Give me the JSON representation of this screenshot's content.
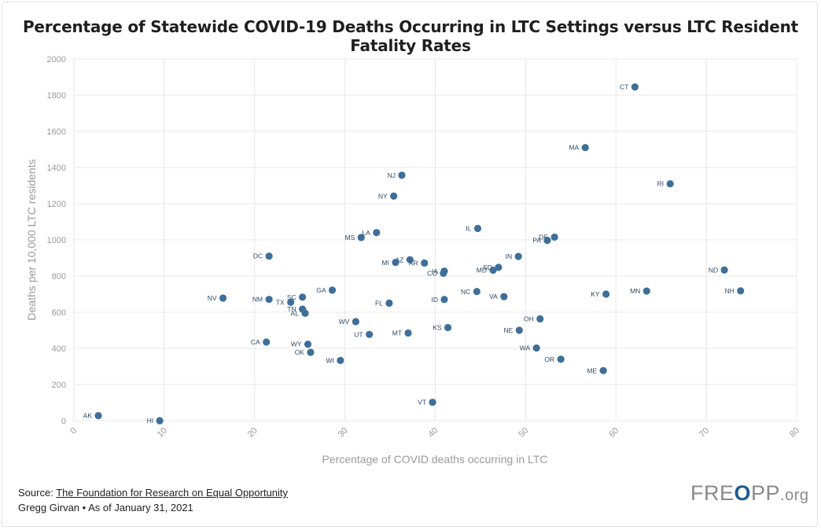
{
  "title": "Percentage of Statewide COVID-19 Deaths Occurring in LTC Settings versus LTC Resident Fatality Rates",
  "source": {
    "prefix": "Source: ",
    "link_text": "The Foundation for Research on Equal Opportunity",
    "byline": "Gregg Girvan • As of January 31, 2021"
  },
  "logo": {
    "part1": "FRE",
    "accent": "O",
    "part2": "PP",
    "suffix": ".org"
  },
  "colors": {
    "point": "#3d6f99",
    "grid": "#e8e8e8",
    "axis_text": "#9a9a9a"
  },
  "chart_data": {
    "type": "scatter",
    "xlabel": "Percentage of COVID deaths occurring in LTC",
    "ylabel": "Deaths per 10,000 LTC residents",
    "xlim": [
      0,
      80
    ],
    "ylim": [
      0,
      2000
    ],
    "xticks": [
      0,
      10,
      20,
      30,
      40,
      50,
      60,
      70,
      80
    ],
    "yticks": [
      0,
      200,
      400,
      600,
      800,
      1000,
      1200,
      1400,
      1600,
      1800,
      2000
    ],
    "grid": true,
    "points": [
      {
        "label": "CT",
        "x": 62.1,
        "y": 1845
      },
      {
        "label": "MA",
        "x": 56.6,
        "y": 1510
      },
      {
        "label": "RI",
        "x": 66.0,
        "y": 1310
      },
      {
        "label": "NJ",
        "x": 36.3,
        "y": 1357
      },
      {
        "label": "NY",
        "x": 35.4,
        "y": 1242
      },
      {
        "label": "IL",
        "x": 44.7,
        "y": 1063
      },
      {
        "label": "DE",
        "x": 53.2,
        "y": 1015
      },
      {
        "label": "PA",
        "x": 52.4,
        "y": 997
      },
      {
        "label": "LA",
        "x": 33.5,
        "y": 1040
      },
      {
        "label": "MS",
        "x": 31.8,
        "y": 1013
      },
      {
        "label": "IN",
        "x": 49.2,
        "y": 908
      },
      {
        "label": "DC",
        "x": 21.6,
        "y": 910
      },
      {
        "label": "AZ",
        "x": 37.2,
        "y": 890
      },
      {
        "label": "MI",
        "x": 35.6,
        "y": 875
      },
      {
        "label": "AR",
        "x": 38.8,
        "y": 872
      },
      {
        "label": "SD",
        "x": 47.0,
        "y": 848
      },
      {
        "label": "MD",
        "x": 46.4,
        "y": 832
      },
      {
        "label": "IA",
        "x": 41.0,
        "y": 827
      },
      {
        "label": "CO",
        "x": 40.9,
        "y": 815
      },
      {
        "label": "ND",
        "x": 72.0,
        "y": 833
      },
      {
        "label": "GA",
        "x": 28.6,
        "y": 722
      },
      {
        "label": "MN",
        "x": 63.4,
        "y": 717
      },
      {
        "label": "NH",
        "x": 73.8,
        "y": 718
      },
      {
        "label": "NC",
        "x": 44.6,
        "y": 714
      },
      {
        "label": "KY",
        "x": 58.9,
        "y": 700
      },
      {
        "label": "VA",
        "x": 47.6,
        "y": 686
      },
      {
        "label": "SC",
        "x": 25.3,
        "y": 683
      },
      {
        "label": "NV",
        "x": 16.5,
        "y": 678
      },
      {
        "label": "NM",
        "x": 21.6,
        "y": 671
      },
      {
        "label": "ID",
        "x": 41.0,
        "y": 670
      },
      {
        "label": "TX",
        "x": 24.0,
        "y": 655
      },
      {
        "label": "FL",
        "x": 34.9,
        "y": 650
      },
      {
        "label": "TN",
        "x": 25.3,
        "y": 617
      },
      {
        "label": "AL",
        "x": 25.6,
        "y": 594
      },
      {
        "label": "OH",
        "x": 51.6,
        "y": 563
      },
      {
        "label": "WV",
        "x": 31.2,
        "y": 548
      },
      {
        "label": "KS",
        "x": 41.4,
        "y": 515
      },
      {
        "label": "NE",
        "x": 49.3,
        "y": 500
      },
      {
        "label": "MT",
        "x": 37.0,
        "y": 485
      },
      {
        "label": "UT",
        "x": 32.7,
        "y": 477
      },
      {
        "label": "CA",
        "x": 21.3,
        "y": 435
      },
      {
        "label": "WY",
        "x": 25.9,
        "y": 423
      },
      {
        "label": "WA",
        "x": 51.2,
        "y": 402
      },
      {
        "label": "OK",
        "x": 26.2,
        "y": 378
      },
      {
        "label": "OR",
        "x": 53.9,
        "y": 340
      },
      {
        "label": "WI",
        "x": 29.5,
        "y": 333
      },
      {
        "label": "ME",
        "x": 58.6,
        "y": 277
      },
      {
        "label": "VT",
        "x": 39.7,
        "y": 102
      },
      {
        "label": "AK",
        "x": 2.7,
        "y": 28
      },
      {
        "label": "HI",
        "x": 9.5,
        "y": 0
      }
    ]
  }
}
